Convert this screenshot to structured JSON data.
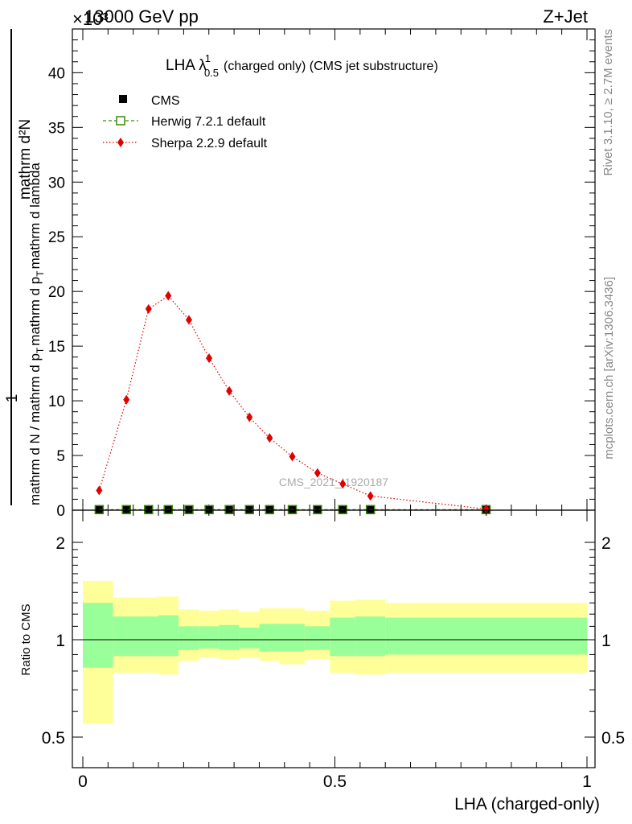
{
  "header": {
    "energy_label": "13000 GeV pp",
    "exponent_label": "×10³",
    "process_label": "Z+Jet"
  },
  "side_labels": {
    "rivet": "Rivet 3.1.10, ≥ 2.7M events",
    "mcplots": "mcplots.cern.ch [arXiv:1306.3436]"
  },
  "watermark": "CMS_2021_I1920187",
  "chart_data": [
    {
      "type": "scatter",
      "title": "LHA λ",
      "title_sup": "1",
      "title_sub": "0.5",
      "title_rest": "(charged only) (CMS jet substructure)",
      "ylabel_num": "mathrm d²N",
      "ylabel_num_one": "1",
      "ylabel_den": "mathrm d N / mathrm d p_T mathrm d p_T mathrm d lambda",
      "ylabel_den_left": "mathrm d N / mathrm d p",
      "ylabel_den_mid": "T",
      "ylabel_den_right": "mathrm d p",
      "ylabel_den_sub": "T",
      "ylabel_den_end": "mathrm d lambda",
      "xlim": [
        0,
        1
      ],
      "ylim": [
        0,
        44
      ],
      "y_ticks": [
        "0",
        "5",
        "10",
        "15",
        "20",
        "25",
        "30",
        "35",
        "40"
      ],
      "legend_position": "top-left",
      "series": [
        {
          "name": "CMS",
          "color": "#000000",
          "marker": "square",
          "x": [
            0.0325,
            0.0865,
            0.1305,
            0.1695,
            0.2105,
            0.2505,
            0.2905,
            0.3305,
            0.3705,
            0.4155,
            0.4655,
            0.5155,
            0.5705,
            0.8
          ],
          "y": [
            0.05,
            0.05,
            0.05,
            0.05,
            0.05,
            0.05,
            0.05,
            0.05,
            0.05,
            0.05,
            0.05,
            0.05,
            0.05,
            0.05
          ]
        },
        {
          "name": "Herwig 7.2.1 default",
          "color": "#3a8a00",
          "marker": "open-square",
          "line": "dashed",
          "x": [
            0.0325,
            0.0865,
            0.1305,
            0.1695,
            0.2105,
            0.2505,
            0.2905,
            0.3305,
            0.3705,
            0.4155,
            0.4655,
            0.5155,
            0.5705,
            0.8
          ],
          "y": [
            0.05,
            0.05,
            0.05,
            0.05,
            0.05,
            0.05,
            0.05,
            0.05,
            0.05,
            0.05,
            0.05,
            0.05,
            0.05,
            0.05
          ]
        },
        {
          "name": "Sherpa 2.2.9 default",
          "color": "#e00000",
          "marker": "diamond",
          "line": "dotted",
          "x": [
            0.0325,
            0.0865,
            0.1305,
            0.1695,
            0.2105,
            0.2505,
            0.2905,
            0.3305,
            0.3705,
            0.4155,
            0.4655,
            0.5155,
            0.5705,
            0.8
          ],
          "y": [
            1.8,
            10.1,
            18.4,
            19.6,
            17.4,
            13.9,
            10.9,
            8.5,
            6.6,
            4.9,
            3.4,
            2.4,
            1.3,
            0.1
          ]
        }
      ]
    },
    {
      "type": "area",
      "ylabel": "Ratio to CMS",
      "xlabel": "LHA (charged-only)",
      "xlim": [
        0,
        1
      ],
      "x_ticks": [
        "0",
        "0.5",
        "1"
      ],
      "y_ticks": [
        "0.5",
        "1",
        "2"
      ],
      "log_y": true,
      "ylim": [
        0.4,
        2.5
      ],
      "reference_line": 1,
      "bands": {
        "edges": [
          0,
          0.06,
          0.15,
          0.19,
          0.23,
          0.27,
          0.31,
          0.35,
          0.39,
          0.44,
          0.49,
          0.54,
          0.6,
          1.0
        ],
        "yellow": {
          "color": "#ffff99",
          "low": [
            0.55,
            0.79,
            0.78,
            0.86,
            0.88,
            0.87,
            0.88,
            0.86,
            0.84,
            0.87,
            0.79,
            0.78,
            0.79,
            0.82
          ],
          "high": [
            1.52,
            1.35,
            1.36,
            1.24,
            1.23,
            1.24,
            1.22,
            1.25,
            1.25,
            1.23,
            1.32,
            1.33,
            1.3,
            1.3
          ]
        },
        "green": {
          "color": "#99ff99",
          "low": [
            0.82,
            0.89,
            0.89,
            0.93,
            0.94,
            0.93,
            0.94,
            0.92,
            0.92,
            0.93,
            0.89,
            0.89,
            0.9,
            0.91
          ],
          "high": [
            1.3,
            1.18,
            1.19,
            1.1,
            1.1,
            1.11,
            1.09,
            1.12,
            1.12,
            1.1,
            1.17,
            1.18,
            1.17,
            1.15
          ]
        }
      }
    }
  ]
}
